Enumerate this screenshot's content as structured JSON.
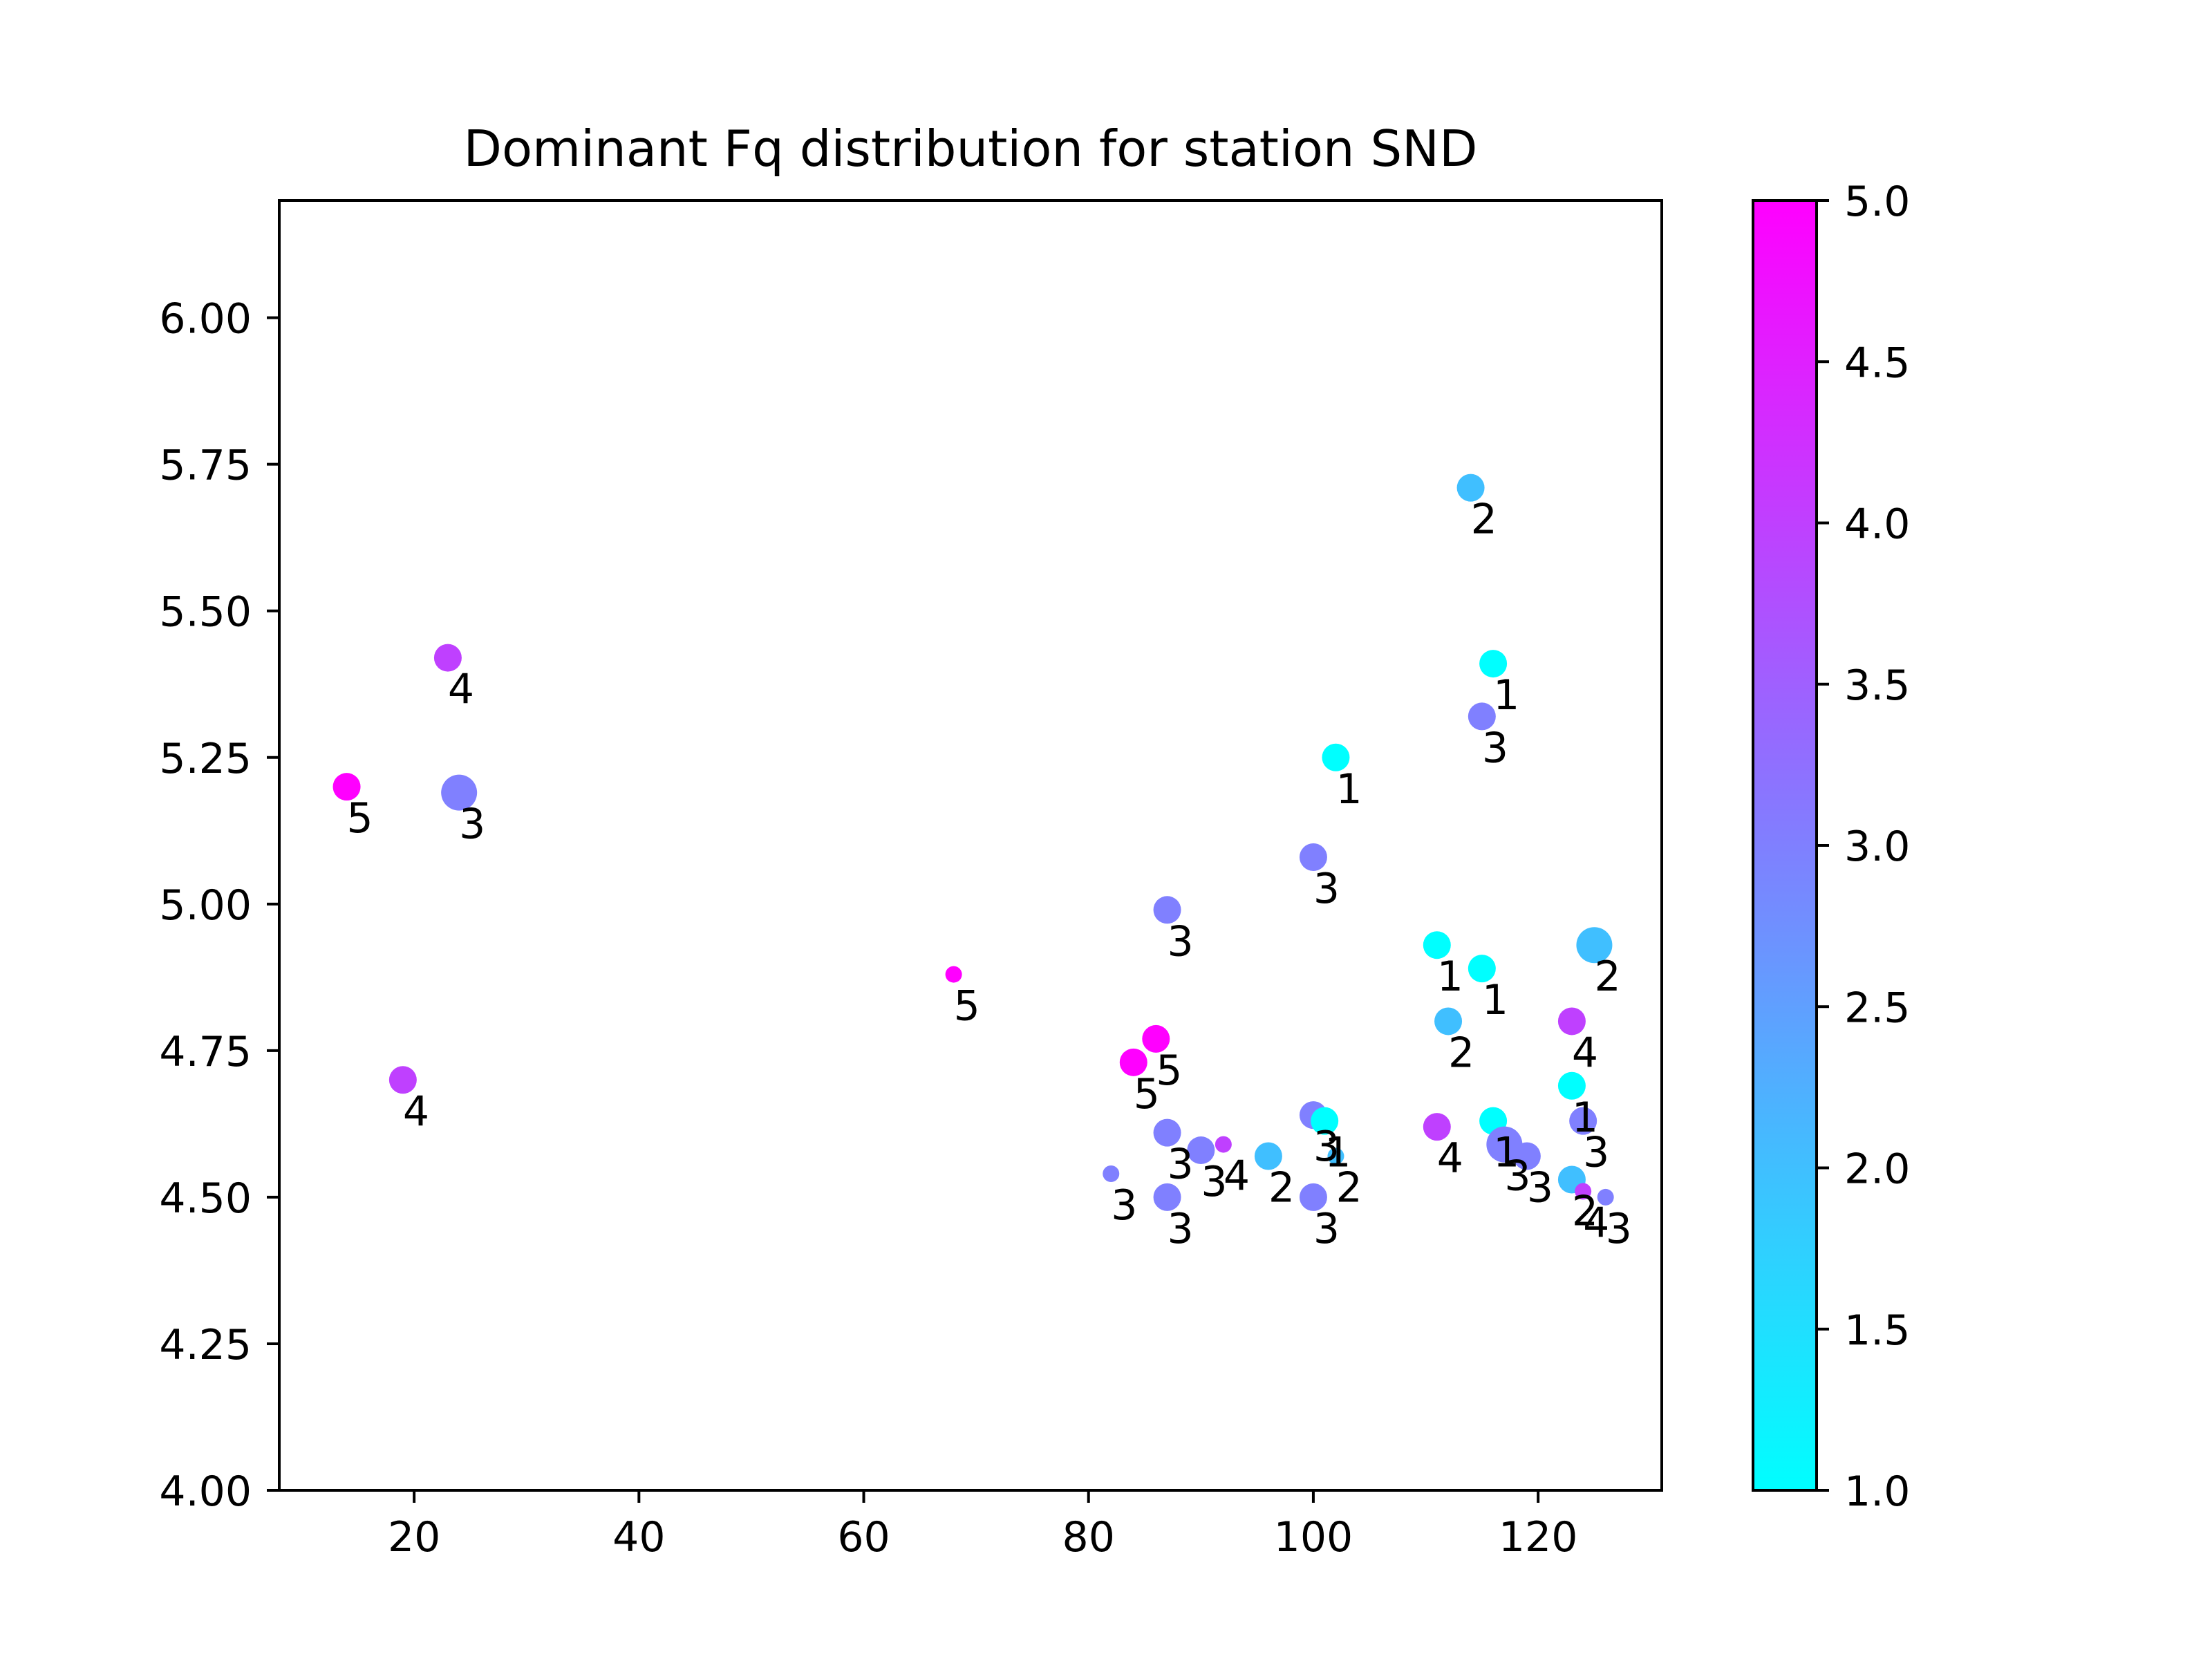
{
  "chart_data": {
    "type": "scatter",
    "title": "Dominant Fq distribution for station SND",
    "xlabel": "",
    "ylabel": "",
    "xlim": [
      8,
      131
    ],
    "ylim": [
      4.0,
      6.2
    ],
    "x_ticks": [
      20,
      40,
      60,
      80,
      100,
      120
    ],
    "y_ticks": [
      4.0,
      4.25,
      4.5,
      4.75,
      5.0,
      5.25,
      5.5,
      5.75,
      6.0
    ],
    "x_tick_labels": [
      "20",
      "40",
      "60",
      "80",
      "100",
      "120"
    ],
    "y_tick_labels": [
      "4.00",
      "4.25",
      "4.50",
      "4.75",
      "5.00",
      "5.25",
      "5.50",
      "5.75",
      "6.00"
    ],
    "grid": false,
    "colormap": "cool",
    "colorbar": {
      "range": [
        1.0,
        5.0
      ],
      "ticks": [
        1.0,
        1.5,
        2.0,
        2.5,
        3.0,
        3.5,
        4.0,
        4.5,
        5.0
      ],
      "tick_labels": [
        "1.0",
        "1.5",
        "2.0",
        "2.5",
        "3.0",
        "3.5",
        "4.0",
        "4.5",
        "5.0"
      ],
      "color_low": "#00ffff",
      "color_high": "#ff00ff"
    },
    "points": [
      {
        "x": 114,
        "y": 5.71,
        "value": 2,
        "label": "2",
        "size": 1.0
      },
      {
        "x": 23,
        "y": 5.42,
        "value": 4,
        "label": "4",
        "size": 1.0
      },
      {
        "x": 116,
        "y": 5.41,
        "value": 1,
        "label": "1",
        "size": 1.0
      },
      {
        "x": 115,
        "y": 5.32,
        "value": 3,
        "label": "3",
        "size": 1.0
      },
      {
        "x": 102,
        "y": 5.25,
        "value": 1,
        "label": "1",
        "size": 1.0
      },
      {
        "x": 14,
        "y": 5.2,
        "value": 5,
        "label": "5",
        "size": 1.0
      },
      {
        "x": 24,
        "y": 5.19,
        "value": 3,
        "label": "3",
        "size": 1.3
      },
      {
        "x": 100,
        "y": 5.08,
        "value": 3,
        "label": "3",
        "size": 1.0
      },
      {
        "x": 87,
        "y": 4.99,
        "value": 3,
        "label": "3",
        "size": 1.0
      },
      {
        "x": 125,
        "y": 4.93,
        "value": 2,
        "label": "2",
        "size": 1.3
      },
      {
        "x": 111,
        "y": 4.93,
        "value": 1,
        "label": "1",
        "size": 1.0
      },
      {
        "x": 115,
        "y": 4.89,
        "value": 1,
        "label": "1",
        "size": 1.0
      },
      {
        "x": 68,
        "y": 4.88,
        "value": 5,
        "label": "5",
        "size": 0.6
      },
      {
        "x": 112,
        "y": 4.8,
        "value": 2,
        "label": "2",
        "size": 1.0
      },
      {
        "x": 123,
        "y": 4.8,
        "value": 4,
        "label": "4",
        "size": 1.0
      },
      {
        "x": 86,
        "y": 4.77,
        "value": 5,
        "label": "5",
        "size": 1.0
      },
      {
        "x": 84,
        "y": 4.73,
        "value": 5,
        "label": "5",
        "size": 1.0
      },
      {
        "x": 19,
        "y": 4.7,
        "value": 4,
        "label": "4",
        "size": 1.0
      },
      {
        "x": 123,
        "y": 4.69,
        "value": 1,
        "label": "1",
        "size": 1.0
      },
      {
        "x": 100,
        "y": 4.64,
        "value": 3,
        "label": "3",
        "size": 1.0
      },
      {
        "x": 101,
        "y": 4.63,
        "value": 1,
        "label": "1",
        "size": 1.0
      },
      {
        "x": 116,
        "y": 4.63,
        "value": 1,
        "label": "1",
        "size": 1.0
      },
      {
        "x": 124,
        "y": 4.63,
        "value": 3,
        "label": "3",
        "size": 1.0
      },
      {
        "x": 111,
        "y": 4.62,
        "value": 4,
        "label": "4",
        "size": 1.0
      },
      {
        "x": 87,
        "y": 4.61,
        "value": 3,
        "label": "3",
        "size": 1.0
      },
      {
        "x": 117,
        "y": 4.59,
        "value": 3,
        "label": "3",
        "size": 1.3
      },
      {
        "x": 92,
        "y": 4.59,
        "value": 4,
        "label": "4",
        "size": 0.6
      },
      {
        "x": 90,
        "y": 4.58,
        "value": 3,
        "label": "3",
        "size": 1.0
      },
      {
        "x": 119,
        "y": 4.57,
        "value": 3,
        "label": "3",
        "size": 1.0
      },
      {
        "x": 96,
        "y": 4.57,
        "value": 2,
        "label": "2",
        "size": 1.0
      },
      {
        "x": 102,
        "y": 4.57,
        "value": 2,
        "label": "2",
        "size": 0.6
      },
      {
        "x": 82,
        "y": 4.54,
        "value": 3,
        "label": "3",
        "size": 0.6
      },
      {
        "x": 123,
        "y": 4.53,
        "value": 2,
        "label": "2",
        "size": 1.0
      },
      {
        "x": 124,
        "y": 4.51,
        "value": 4,
        "label": "4",
        "size": 0.6
      },
      {
        "x": 87,
        "y": 4.5,
        "value": 3,
        "label": "3",
        "size": 1.0
      },
      {
        "x": 100,
        "y": 4.5,
        "value": 3,
        "label": "3",
        "size": 1.0
      },
      {
        "x": 126,
        "y": 4.5,
        "value": 3,
        "label": "3",
        "size": 0.6
      }
    ]
  }
}
